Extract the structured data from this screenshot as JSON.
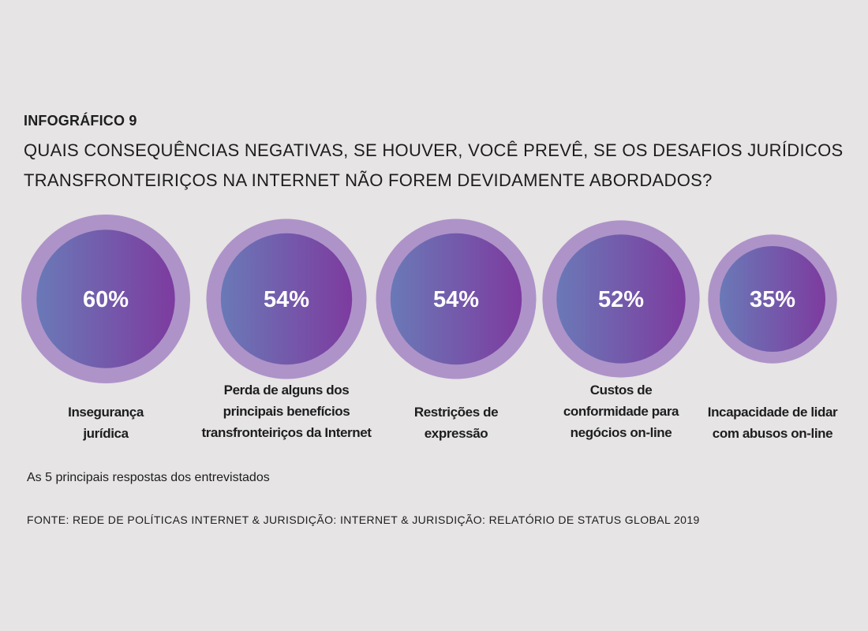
{
  "header": {
    "eyebrow": "INFOGRÁFICO 9",
    "question": "QUAIS CONSEQUÊNCIAS NEGATIVAS, SE HOUVER, VOCÊ PREVÊ, SE OS DESAFIOS JURÍDICOS TRANSFRONTEIRIÇOS NA INTERNET NÃO FOREM DEVIDAMENTE ABORDADOS?"
  },
  "colors": {
    "ring": "#ae93c9",
    "gradient_start": "#6a79b7",
    "gradient_end": "#7d3b9f"
  },
  "chart_data": {
    "type": "bubble",
    "unit": "%",
    "categories": [
      "Insegurança jurídica",
      "Perda de alguns dos principais benefícios transfronteiriços da Internet",
      "Restrições de expressão",
      "Custos de conformidade para negócios on-line",
      "Incapacidade de lidar com abusos on-line"
    ],
    "values": [
      60,
      54,
      54,
      52,
      35
    ],
    "display": [
      "60%",
      "54%",
      "54%",
      "52%",
      "35%"
    ]
  },
  "items": [
    {
      "lines": [
        "Insegurança",
        "jurídica"
      ]
    },
    {
      "lines": [
        "Perda de alguns dos",
        "principais benefícios",
        "transfronteiriços da Internet"
      ]
    },
    {
      "lines": [
        "Restrições de",
        "expressão"
      ]
    },
    {
      "lines": [
        "Custos de",
        "conformidade para",
        "negócios on-line"
      ]
    },
    {
      "lines": [
        "Incapacidade de lidar",
        "com abusos on-line"
      ]
    }
  ],
  "footer": {
    "note": "As 5 principais respostas dos entrevistados",
    "source": "FONTE: REDE DE POLÍTICAS INTERNET & JURISDIÇÃO: INTERNET & JURISDIÇÃO: RELATÓRIO DE STATUS GLOBAL 2019"
  }
}
